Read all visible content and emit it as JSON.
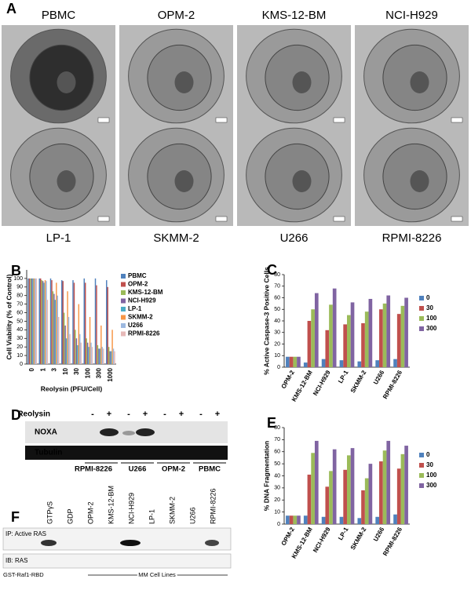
{
  "panel_a": {
    "label": "A",
    "cells": [
      "PBMC",
      "OPM-2",
      "KMS-12-BM",
      "NCI-H929",
      "LP-1",
      "SKMM-2",
      "U266",
      "RPMI-8226"
    ]
  },
  "chart_data": [
    {
      "panel": "B",
      "type": "bar",
      "xlabel": "Reolysin (PFU/Cell)",
      "ylabel": "Cell Viability (% of Control)",
      "categories": [
        "0",
        "1",
        "3",
        "10",
        "30",
        "100",
        "300",
        "1000"
      ],
      "ylim": [
        0,
        110
      ],
      "yticks": [
        0,
        10,
        20,
        30,
        40,
        50,
        60,
        70,
        80,
        90,
        100
      ],
      "legend": "right",
      "series": [
        {
          "name": "PBMC",
          "color": "#4f81bd",
          "values": [
            100,
            100,
            100,
            98,
            98,
            100,
            100,
            98
          ]
        },
        {
          "name": "OPM-2",
          "color": "#c0504d",
          "values": [
            100,
            100,
            98,
            97,
            95,
            95,
            92,
            90
          ]
        },
        {
          "name": "KMS-12-BM",
          "color": "#9bbb59",
          "values": [
            100,
            98,
            85,
            60,
            40,
            30,
            22,
            20
          ]
        },
        {
          "name": "NCI-H929",
          "color": "#8064a2",
          "values": [
            100,
            97,
            82,
            45,
            30,
            25,
            18,
            15
          ]
        },
        {
          "name": "LP-1",
          "color": "#4bacc6",
          "values": [
            100,
            95,
            75,
            30,
            22,
            20,
            18,
            15
          ]
        },
        {
          "name": "SKMM-2",
          "color": "#f79646",
          "values": [
            100,
            98,
            95,
            85,
            70,
            55,
            45,
            40
          ]
        },
        {
          "name": "U266",
          "color": "#9db9e0",
          "values": [
            100,
            97,
            80,
            55,
            35,
            25,
            20,
            18
          ]
        },
        {
          "name": "RPMI-8226",
          "color": "#e6b9b8",
          "values": [
            100,
            75,
            55,
            35,
            25,
            20,
            18,
            15
          ]
        }
      ]
    },
    {
      "panel": "C",
      "type": "bar",
      "ylabel": "% Active Caspase-3 Positive Cells",
      "categories": [
        "OPM-2",
        "KMS-12-BM",
        "NCI-H929",
        "LP-1",
        "SKMM-2",
        "U266",
        "RPMI-8226"
      ],
      "ylim": [
        0,
        80
      ],
      "yticks": [
        0,
        10,
        20,
        30,
        40,
        50,
        60,
        70,
        80
      ],
      "legend": "right",
      "series": [
        {
          "name": "0",
          "color": "#4f81bd",
          "values": [
            9,
            4,
            7,
            6,
            5,
            6,
            7
          ]
        },
        {
          "name": "30",
          "color": "#c0504d",
          "values": [
            9,
            40,
            32,
            37,
            38,
            50,
            46
          ]
        },
        {
          "name": "100",
          "color": "#9bbb59",
          "values": [
            9,
            50,
            54,
            45,
            48,
            55,
            53
          ]
        },
        {
          "name": "300",
          "color": "#8064a2",
          "values": [
            9,
            64,
            68,
            56,
            59,
            62,
            60
          ]
        }
      ]
    },
    {
      "panel": "E",
      "type": "bar",
      "ylabel": "% DNA Fragmentation",
      "categories": [
        "OPM-2",
        "KMS-12-BM",
        "NCI-H929",
        "LP-1",
        "SKMM-2",
        "U266",
        "RPMI-8226"
      ],
      "ylim": [
        0,
        80
      ],
      "yticks": [
        0,
        10,
        20,
        30,
        40,
        50,
        60,
        70,
        80
      ],
      "legend": "right",
      "series": [
        {
          "name": "0",
          "color": "#4f81bd",
          "values": [
            7,
            7,
            6,
            6,
            5,
            6,
            8
          ]
        },
        {
          "name": "30",
          "color": "#c0504d",
          "values": [
            7,
            41,
            31,
            45,
            28,
            52,
            46
          ]
        },
        {
          "name": "100",
          "color": "#9bbb59",
          "values": [
            7,
            59,
            44,
            57,
            38,
            61,
            58
          ]
        },
        {
          "name": "300",
          "color": "#8064a2",
          "values": [
            7,
            69,
            62,
            63,
            50,
            69,
            65
          ]
        }
      ]
    }
  ],
  "panel_d": {
    "label": "D",
    "treatment": "Reolysin",
    "signs": [
      "-",
      "+",
      "-",
      "+",
      "-",
      "+",
      "-",
      "+"
    ],
    "rows": [
      "NOXA",
      "Tubulin"
    ],
    "groups": [
      "RPMI-8226",
      "U266",
      "OPM-2",
      "PBMC"
    ]
  },
  "panel_f": {
    "label": "F",
    "lanes": [
      "GTPγS",
      "GDP",
      "OPM-2",
      "KMS-12-BM",
      "NCI-H929",
      "LP-1",
      "SKMM-2",
      "U266",
      "RPMI-8226"
    ],
    "rows": [
      "IP: Active RAS",
      "IB: RAS"
    ],
    "bait": "GST-Raf1-RBD",
    "group": "MM Cell Lines"
  }
}
